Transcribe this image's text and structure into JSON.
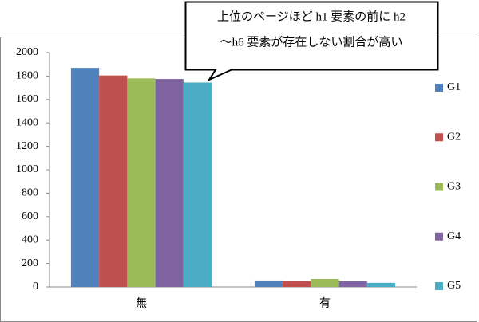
{
  "chart_data": {
    "type": "bar",
    "annotation": [
      "上位のページほど h1 要素の前に h2",
      "～h6 要素が存在しない割合が高い"
    ],
    "categories": [
      "無",
      "有"
    ],
    "series": [
      {
        "name": "G1",
        "color": "#4f81bd",
        "values": [
          1870,
          55
        ]
      },
      {
        "name": "G2",
        "color": "#c0504d",
        "values": [
          1805,
          52
        ]
      },
      {
        "name": "G3",
        "color": "#9bbb59",
        "values": [
          1780,
          68
        ]
      },
      {
        "name": "G4",
        "color": "#8064a2",
        "values": [
          1775,
          48
        ]
      },
      {
        "name": "G5",
        "color": "#4bacc6",
        "values": [
          1745,
          35
        ]
      }
    ],
    "ylim": [
      0,
      2000
    ],
    "yticks": [
      0,
      200,
      400,
      600,
      800,
      1000,
      1200,
      1400,
      1600,
      1800,
      2000
    ],
    "grid": false,
    "legend": "right"
  }
}
